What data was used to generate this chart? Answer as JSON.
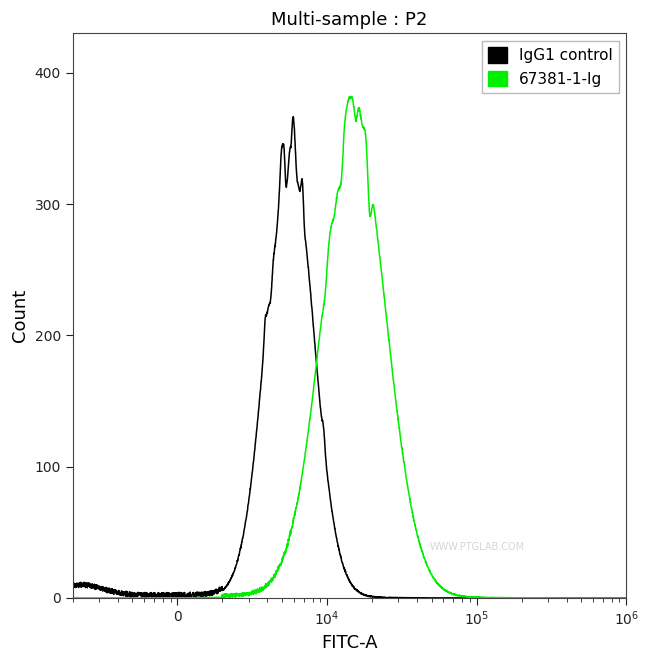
{
  "title": "Multi-sample : P2",
  "xlabel": "FITC-A",
  "ylabel": "Count",
  "ylim": [
    0,
    430
  ],
  "yticks": [
    0,
    100,
    200,
    300,
    400
  ],
  "legend_labels": [
    "IgG1 control",
    "67381-1-Ig"
  ],
  "legend_colors": [
    "#000000",
    "#00ee00"
  ],
  "watermark": "WWW.PTGLAB.COM",
  "black_peak_log": 3.75,
  "black_peak_height": 348,
  "black_sigma_log": 0.155,
  "green_peak_log": 4.18,
  "green_peak_height": 363,
  "green_sigma_log": 0.21,
  "background_color": "#ffffff",
  "line_width": 1.1,
  "xlim_min": 200,
  "xlim_max": 1000000,
  "x_tick_positions": [
    1000,
    10000,
    100000,
    1000000
  ],
  "x_tick_labels": [
    "0",
    "$10^4$",
    "$10^5$",
    "$10^6$"
  ]
}
